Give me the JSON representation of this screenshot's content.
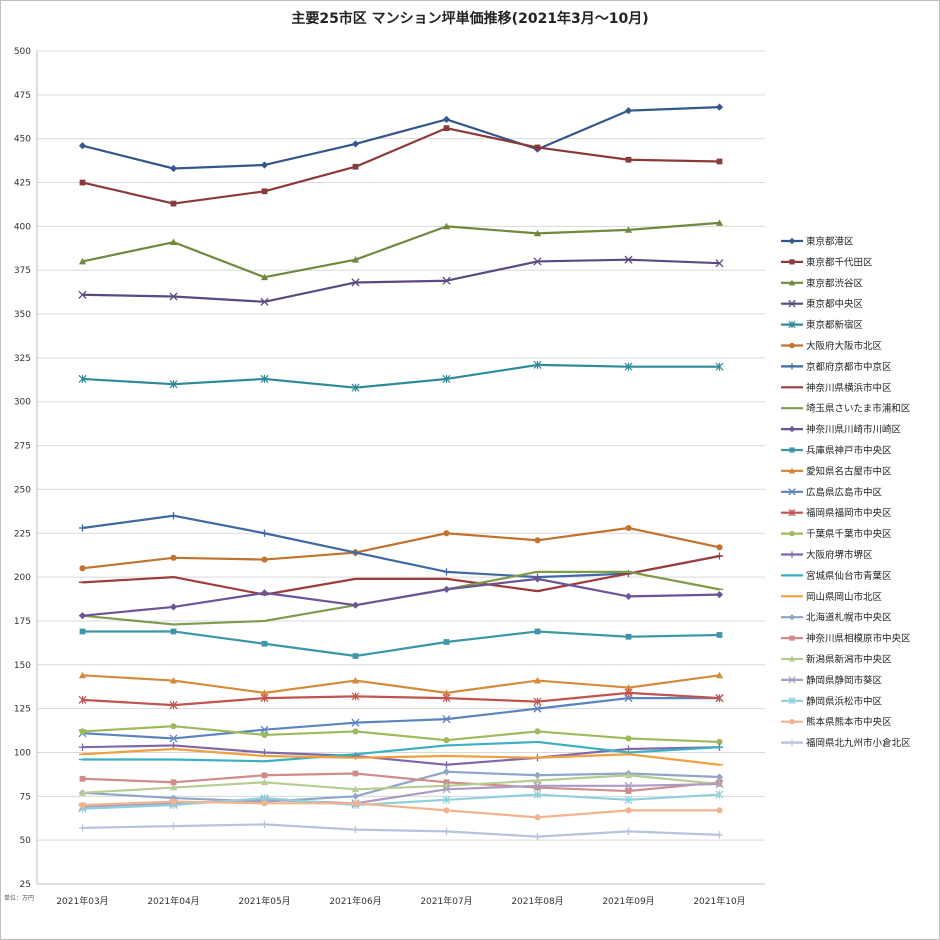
{
  "chart_data": {
    "type": "line",
    "title": "主要25市区 マンション坪単価推移(2021年3月～10月)",
    "unit_note": "単位：万円",
    "categories": [
      "2021年03月",
      "2021年04月",
      "2021年05月",
      "2021年06月",
      "2021年07月",
      "2021年08月",
      "2021年09月",
      "2021年10月"
    ],
    "ylim": [
      25,
      500
    ],
    "yticks": [
      25,
      50,
      75,
      100,
      125,
      150,
      175,
      200,
      225,
      250,
      275,
      300,
      325,
      350,
      375,
      400,
      425,
      450,
      475,
      500
    ],
    "grid": "horizontal",
    "legend_position": "right",
    "series": [
      {
        "name": "東京都港区",
        "color": "#35578a",
        "marker": "diamond",
        "values": [
          446,
          433,
          435,
          447,
          461,
          444,
          466,
          468
        ]
      },
      {
        "name": "東京都千代田区",
        "color": "#8b3a3a",
        "marker": "square",
        "values": [
          425,
          413,
          420,
          434,
          456,
          445,
          438,
          437
        ]
      },
      {
        "name": "東京都渋谷区",
        "color": "#6f8a3d",
        "marker": "triangle",
        "values": [
          380,
          391,
          371,
          381,
          400,
          396,
          398,
          402
        ]
      },
      {
        "name": "東京都中央区",
        "color": "#5b4a82",
        "marker": "x",
        "values": [
          361,
          360,
          357,
          368,
          369,
          380,
          381,
          379
        ]
      },
      {
        "name": "東京都新宿区",
        "color": "#2e8a99",
        "marker": "star",
        "values": [
          313,
          310,
          313,
          308,
          313,
          321,
          320,
          320
        ]
      },
      {
        "name": "大阪府大阪市北区",
        "color": "#c0722e",
        "marker": "circle",
        "values": [
          205,
          211,
          210,
          214,
          225,
          221,
          228,
          217
        ]
      },
      {
        "name": "京都府京都市中京区",
        "color": "#3f6aa2",
        "marker": "plus",
        "values": [
          228,
          235,
          225,
          214,
          203,
          200,
          202,
          212
        ]
      },
      {
        "name": "神奈川県横浜市中区",
        "color": "#9d3d3b",
        "marker": "dash",
        "values": [
          197,
          200,
          190,
          199,
          199,
          192,
          202,
          212
        ]
      },
      {
        "name": "埼玉県さいたま市浦和区",
        "color": "#7f9a4b",
        "marker": "dash",
        "values": [
          178,
          173,
          175,
          184,
          193,
          203,
          203,
          193
        ]
      },
      {
        "name": "神奈川県川崎市川崎区",
        "color": "#6b5597",
        "marker": "diamond",
        "values": [
          178,
          183,
          191,
          184,
          193,
          199,
          189,
          190
        ]
      },
      {
        "name": "兵庫県神戸市中央区",
        "color": "#3d97a8",
        "marker": "square",
        "values": [
          169,
          169,
          162,
          155,
          163,
          169,
          166,
          167
        ]
      },
      {
        "name": "愛知県名古屋市中区",
        "color": "#d68a3c",
        "marker": "triangle",
        "values": [
          144,
          141,
          134,
          141,
          134,
          141,
          137,
          144
        ]
      },
      {
        "name": "広島県広島市中区",
        "color": "#5b84bf",
        "marker": "x",
        "values": [
          111,
          108,
          113,
          117,
          119,
          125,
          131,
          131
        ]
      },
      {
        "name": "福岡県福岡市中央区",
        "color": "#c05450",
        "marker": "star",
        "values": [
          130,
          127,
          131,
          132,
          131,
          129,
          134,
          131
        ]
      },
      {
        "name": "千葉県千葉市中央区",
        "color": "#9dba5a",
        "marker": "circle",
        "values": [
          112,
          115,
          110,
          112,
          107,
          112,
          108,
          106
        ]
      },
      {
        "name": "大阪府堺市堺区",
        "color": "#7f68a8",
        "marker": "plus",
        "values": [
          103,
          104,
          100,
          98,
          93,
          97,
          102,
          103
        ]
      },
      {
        "name": "宮城県仙台市青葉区",
        "color": "#3cb0c0",
        "marker": "dash",
        "values": [
          96,
          96,
          95,
          99,
          104,
          106,
          100,
          103
        ]
      },
      {
        "name": "岡山県岡山市北区",
        "color": "#efa040",
        "marker": "dash",
        "values": [
          99,
          102,
          98,
          97,
          98,
          97,
          99,
          93
        ]
      },
      {
        "name": "北海道札幌市中央区",
        "color": "#8fa6c8",
        "marker": "diamond",
        "values": [
          77,
          74,
          72,
          75,
          89,
          87,
          88,
          86
        ]
      },
      {
        "name": "神奈川県相模原市中央区",
        "color": "#d08c8a",
        "marker": "square",
        "values": [
          85,
          83,
          87,
          88,
          83,
          80,
          78,
          83
        ]
      },
      {
        "name": "新潟県新潟市中央区",
        "color": "#b7cc93",
        "marker": "triangle",
        "values": [
          77,
          80,
          83,
          79,
          81,
          84,
          87,
          82
        ]
      },
      {
        "name": "静岡県静岡市葵区",
        "color": "#aa9cc4",
        "marker": "x",
        "values": [
          69,
          71,
          73,
          71,
          79,
          81,
          81,
          82
        ]
      },
      {
        "name": "静岡県浜松市中区",
        "color": "#8fd0da",
        "marker": "star",
        "values": [
          68,
          70,
          74,
          70,
          73,
          76,
          73,
          76
        ]
      },
      {
        "name": "熊本県熊本市中央区",
        "color": "#f2b38e",
        "marker": "circle",
        "values": [
          70,
          72,
          71,
          71,
          67,
          63,
          67,
          67
        ]
      },
      {
        "name": "福岡県北九州市小倉北区",
        "color": "#b6c3de",
        "marker": "plus",
        "values": [
          57,
          58,
          59,
          56,
          55,
          52,
          55,
          53
        ]
      }
    ]
  }
}
